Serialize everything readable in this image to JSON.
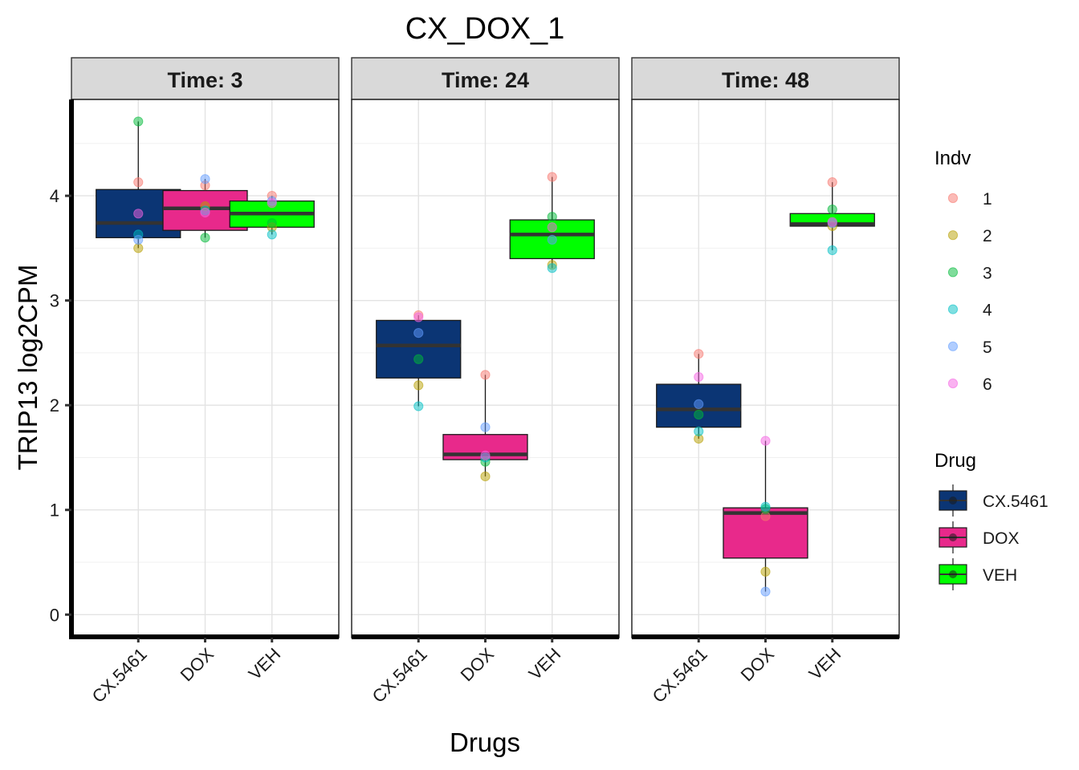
{
  "chart_data": {
    "type": "boxplot",
    "title": "CX_DOX_1",
    "xlabel": "Drugs",
    "ylabel": "TRIP13 log2CPM",
    "ylim": [
      -0.22,
      4.92
    ],
    "yticks": [
      0,
      1,
      2,
      3,
      4
    ],
    "categories": [
      "CX.5461",
      "DOX",
      "VEH"
    ],
    "facet_label_prefix": "Time: ",
    "facets": [
      {
        "label": "Time: 3",
        "boxes": [
          {
            "drug": "CX.5461",
            "q1": 3.6,
            "median": 3.74,
            "q3": 4.06,
            "whisker_low": 3.5,
            "whisker_high": 4.71,
            "points": [
              {
                "indv": "1",
                "value": 4.13
              },
              {
                "indv": "2",
                "value": 3.5
              },
              {
                "indv": "3",
                "value": 4.71
              },
              {
                "indv": "4",
                "value": 3.63
              },
              {
                "indv": "5",
                "value": 3.58
              },
              {
                "indv": "6",
                "value": 3.83
              }
            ]
          },
          {
            "drug": "DOX",
            "q1": 3.67,
            "median": 3.88,
            "q3": 4.05,
            "whisker_low": 3.6,
            "whisker_high": 4.16,
            "points": [
              {
                "indv": "1",
                "value": 4.1
              },
              {
                "indv": "2",
                "value": 3.9
              },
              {
                "indv": "3",
                "value": 3.6
              },
              {
                "indv": "4",
                "value": 3.86
              },
              {
                "indv": "5",
                "value": 4.16
              },
              {
                "indv": "6",
                "value": 3.84
              }
            ]
          },
          {
            "drug": "VEH",
            "q1": 3.7,
            "median": 3.83,
            "q3": 3.95,
            "whisker_low": 3.63,
            "whisker_high": 4.0,
            "points": [
              {
                "indv": "1",
                "value": 4.0
              },
              {
                "indv": "2",
                "value": 3.7
              },
              {
                "indv": "3",
                "value": 3.74
              },
              {
                "indv": "4",
                "value": 3.63
              },
              {
                "indv": "5",
                "value": 3.95
              },
              {
                "indv": "6",
                "value": 3.93
              }
            ]
          }
        ]
      },
      {
        "label": "Time: 24",
        "boxes": [
          {
            "drug": "CX.5461",
            "q1": 2.26,
            "median": 2.57,
            "q3": 2.81,
            "whisker_low": 1.99,
            "whisker_high": 2.86,
            "points": [
              {
                "indv": "1",
                "value": 2.86
              },
              {
                "indv": "2",
                "value": 2.19
              },
              {
                "indv": "3",
                "value": 2.44
              },
              {
                "indv": "4",
                "value": 1.99
              },
              {
                "indv": "5",
                "value": 2.69
              },
              {
                "indv": "6",
                "value": 2.84
              }
            ]
          },
          {
            "drug": "DOX",
            "q1": 1.48,
            "median": 1.53,
            "q3": 1.72,
            "whisker_low": 1.32,
            "whisker_high": 2.29,
            "points": [
              {
                "indv": "1",
                "value": 2.29
              },
              {
                "indv": "2",
                "value": 1.32
              },
              {
                "indv": "3",
                "value": 1.46
              },
              {
                "indv": "4",
                "value": 1.5
              },
              {
                "indv": "5",
                "value": 1.79
              },
              {
                "indv": "6",
                "value": 1.52
              }
            ]
          },
          {
            "drug": "VEH",
            "q1": 3.4,
            "median": 3.63,
            "q3": 3.77,
            "whisker_low": 3.31,
            "whisker_high": 4.18,
            "points": [
              {
                "indv": "1",
                "value": 4.18
              },
              {
                "indv": "2",
                "value": 3.34
              },
              {
                "indv": "3",
                "value": 3.8
              },
              {
                "indv": "4",
                "value": 3.31
              },
              {
                "indv": "5",
                "value": 3.58
              },
              {
                "indv": "6",
                "value": 3.7
              }
            ]
          }
        ]
      },
      {
        "label": "Time: 48",
        "boxes": [
          {
            "drug": "CX.5461",
            "q1": 1.79,
            "median": 1.96,
            "q3": 2.2,
            "whisker_low": 1.68,
            "whisker_high": 2.49,
            "points": [
              {
                "indv": "1",
                "value": 2.49
              },
              {
                "indv": "2",
                "value": 1.68
              },
              {
                "indv": "3",
                "value": 1.91
              },
              {
                "indv": "4",
                "value": 1.75
              },
              {
                "indv": "5",
                "value": 2.01
              },
              {
                "indv": "6",
                "value": 2.27
              }
            ]
          },
          {
            "drug": "DOX",
            "q1": 0.54,
            "median": 0.97,
            "q3": 1.02,
            "whisker_low": 0.22,
            "whisker_high": 1.66,
            "points": [
              {
                "indv": "1",
                "value": 0.94
              },
              {
                "indv": "2",
                "value": 0.41
              },
              {
                "indv": "3",
                "value": 1.01
              },
              {
                "indv": "4",
                "value": 1.03
              },
              {
                "indv": "5",
                "value": 0.22
              },
              {
                "indv": "6",
                "value": 1.66
              }
            ]
          },
          {
            "drug": "VEH",
            "q1": 3.71,
            "median": 3.73,
            "q3": 3.83,
            "whisker_low": 3.48,
            "whisker_high": 4.13,
            "points": [
              {
                "indv": "1",
                "value": 4.13
              },
              {
                "indv": "2",
                "value": 3.71
              },
              {
                "indv": "3",
                "value": 3.87
              },
              {
                "indv": "4",
                "value": 3.48
              },
              {
                "indv": "5",
                "value": 3.74
              },
              {
                "indv": "6",
                "value": 3.75
              }
            ]
          }
        ]
      }
    ],
    "legends": [
      {
        "title": "Indv",
        "entries": [
          {
            "label": "1",
            "color": "#F8766D"
          },
          {
            "label": "2",
            "color": "#B79F00"
          },
          {
            "label": "3",
            "color": "#00BA38"
          },
          {
            "label": "4",
            "color": "#00BFC4"
          },
          {
            "label": "5",
            "color": "#619CFF"
          },
          {
            "label": "6",
            "color": "#F564E3"
          }
        ]
      },
      {
        "title": "Drug",
        "entries": [
          {
            "label": "CX.5461",
            "color": "#0B3574"
          },
          {
            "label": "DOX",
            "color": "#E8298B"
          },
          {
            "label": "VEH",
            "color": "#00FF00"
          }
        ]
      }
    ],
    "legend_position": "right",
    "grid": true
  }
}
